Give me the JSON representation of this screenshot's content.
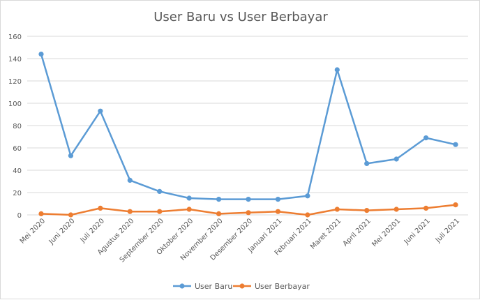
{
  "chart_data": {
    "type": "line",
    "title": "User Baru vs User Berbayar",
    "categories": [
      "Mei 2020",
      "Juni 2020",
      "Juli 2020",
      "Agustus 2020",
      "September 2020",
      "Oktober 2020",
      "November 2020",
      "Desember 2020",
      "Januari 2021",
      "Februari 2021",
      "Maret 2021",
      "April 2021",
      "Mei 20201",
      "Juni 2021",
      "Juli 2021"
    ],
    "series": [
      {
        "name": "User Baru",
        "color": "#5b9bd5",
        "values": [
          144,
          53,
          93,
          31,
          21,
          15,
          14,
          14,
          14,
          17,
          130,
          46,
          50,
          69,
          63
        ]
      },
      {
        "name": "User Berbayar",
        "color": "#ed7d31",
        "values": [
          1,
          0,
          6,
          3,
          3,
          5,
          1,
          2,
          3,
          0,
          5,
          4,
          5,
          6,
          9
        ]
      }
    ],
    "y_ticks": [
      "0",
      "20",
      "40",
      "60",
      "80",
      "100",
      "120",
      "140",
      "160"
    ],
    "ylim": [
      0,
      160
    ],
    "grid": true,
    "legend_position": "bottom"
  }
}
